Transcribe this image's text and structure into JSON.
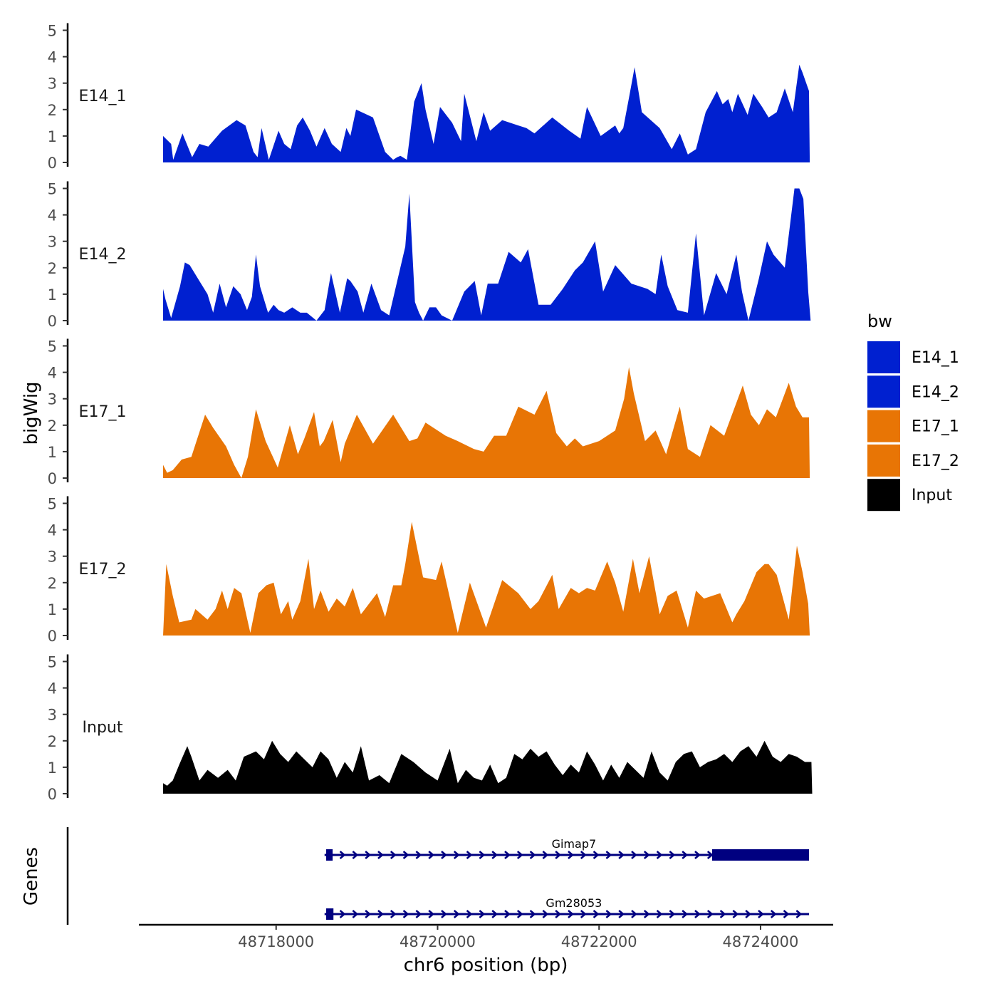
{
  "chart_data": {
    "type": "area",
    "ylabel": "bigWig",
    "xlabel": "chr6 position (bp)",
    "genes_label": "Genes",
    "xlim": [
      48716300,
      48724900
    ],
    "ylim": [
      0,
      5
    ],
    "y_ticks": [
      "0",
      "1",
      "2",
      "3",
      "4",
      "5"
    ],
    "x_ticks": [
      {
        "value": 48718000,
        "label": "48718000"
      },
      {
        "value": 48720000,
        "label": "48720000"
      },
      {
        "value": 48722000,
        "label": "48722000"
      },
      {
        "value": 48724000,
        "label": "48724000"
      }
    ],
    "legend": {
      "title": "bw",
      "entries": [
        {
          "label": "E14_1",
          "color": "#0020D0"
        },
        {
          "label": "E14_2",
          "color": "#0020D0"
        },
        {
          "label": "E17_1",
          "color": "#E87505"
        },
        {
          "label": "E17_2",
          "color": "#E87505"
        },
        {
          "label": "Input",
          "color": "#000000"
        }
      ]
    },
    "tracks": [
      {
        "name": "E14_1",
        "color": "#0020D0",
        "x": [
          48716600,
          48716700,
          48716725,
          48716840,
          48716960,
          48717050,
          48717160,
          48717330,
          48717510,
          48717620,
          48717720,
          48717770,
          48717820,
          48717910,
          48718030,
          48718100,
          48718180,
          48718260,
          48718330,
          48718420,
          48718500,
          48718600,
          48718690,
          48718800,
          48718870,
          48718920,
          48718990,
          48719200,
          48719350,
          48719450,
          48719500,
          48719540,
          48719620,
          48719710,
          48719800,
          48719850,
          48719950,
          48720030,
          48720180,
          48720290,
          48720330,
          48720480,
          48720570,
          48720650,
          48720800,
          48721000,
          48721100,
          48721200,
          48721420,
          48721630,
          48721770,
          48721850,
          48722020,
          48722200,
          48722250,
          48722300,
          48722380,
          48722440,
          48722530,
          48722750,
          48722900,
          48723000,
          48723100,
          48723200,
          48723320,
          48723460,
          48723530,
          48723600,
          48723650,
          48723720,
          48723840,
          48723910,
          48724020,
          48724100,
          48724200,
          48724300,
          48724400,
          48724480,
          48724520,
          48724600
        ],
        "y": [
          1.0,
          0.7,
          0.1,
          1.1,
          0.2,
          0.7,
          0.6,
          1.2,
          1.6,
          1.4,
          0.4,
          0.2,
          1.3,
          0.1,
          1.2,
          0.7,
          0.5,
          1.4,
          1.7,
          1.2,
          0.6,
          1.3,
          0.7,
          0.4,
          1.3,
          1.0,
          2.0,
          1.7,
          0.4,
          0.1,
          0.2,
          0.25,
          0.1,
          2.3,
          3.0,
          2.0,
          0.7,
          2.1,
          1.5,
          0.8,
          2.6,
          0.8,
          1.9,
          1.2,
          1.6,
          1.4,
          1.3,
          1.1,
          1.7,
          1.2,
          0.9,
          2.1,
          1.0,
          1.4,
          1.1,
          1.3,
          2.6,
          3.6,
          1.9,
          1.3,
          0.5,
          1.1,
          0.3,
          0.5,
          1.9,
          2.7,
          2.2,
          2.4,
          1.9,
          2.6,
          1.8,
          2.6,
          2.1,
          1.7,
          1.9,
          2.8,
          1.9,
          3.7,
          3.4,
          2.7
        ],
        "x_end": 48724610
      },
      {
        "name": "E14_2",
        "color": "#0020D0",
        "x": [
          48716600,
          48716630,
          48716700,
          48716810,
          48716870,
          48716930,
          48717050,
          48717150,
          48717220,
          48717300,
          48717380,
          48717470,
          48717560,
          48717640,
          48717700,
          48717750,
          48717800,
          48717900,
          48717970,
          48718030,
          48718100,
          48718200,
          48718300,
          48718380,
          48718500,
          48718600,
          48718680,
          48718790,
          48718880,
          48718920,
          48719010,
          48719080,
          48719180,
          48719300,
          48719400,
          48719600,
          48719650,
          48719720,
          48719770,
          48719820,
          48719900,
          48719980,
          48720050,
          48720180,
          48720330,
          48720460,
          48720540,
          48720620,
          48720750,
          48720880,
          48721030,
          48721120,
          48721250,
          48721400,
          48721550,
          48721700,
          48721800,
          48721950,
          48722050,
          48722200,
          48722400,
          48722600,
          48722700,
          48722770,
          48722850,
          48722970,
          48723100,
          48723200,
          48723300,
          48723450,
          48723580,
          48723700,
          48723770,
          48723850,
          48723980,
          48724080,
          48724160,
          48724300,
          48724420,
          48724480,
          48724530,
          48724590
        ],
        "y": [
          1.2,
          0.8,
          0.1,
          1.3,
          2.2,
          2.1,
          1.5,
          1.0,
          0.3,
          1.4,
          0.5,
          1.3,
          1.0,
          0.4,
          0.9,
          2.5,
          1.3,
          0.3,
          0.6,
          0.4,
          0.3,
          0.5,
          0.3,
          0.3,
          0.0,
          0.4,
          1.8,
          0.3,
          1.6,
          1.5,
          1.1,
          0.3,
          1.4,
          0.4,
          0.2,
          2.8,
          4.8,
          0.7,
          0.3,
          0.0,
          0.5,
          0.5,
          0.2,
          0.0,
          1.1,
          1.5,
          0.2,
          1.4,
          1.4,
          2.6,
          2.2,
          2.7,
          0.6,
          0.6,
          1.2,
          1.9,
          2.2,
          3.0,
          1.1,
          2.1,
          1.4,
          1.2,
          1.0,
          2.5,
          1.3,
          0.4,
          0.3,
          3.3,
          0.2,
          1.8,
          1.0,
          2.5,
          1.1,
          0.0,
          1.6,
          3.0,
          2.5,
          2.0,
          5.0,
          5.0,
          4.6,
          1.1
        ],
        "x_end": 48724620
      },
      {
        "name": "E17_1",
        "color": "#E87505",
        "x": [
          48716600,
          48716650,
          48716720,
          48716830,
          48716950,
          48717120,
          48717220,
          48717380,
          48717480,
          48717570,
          48717650,
          48717750,
          48717870,
          48718020,
          48718170,
          48718270,
          48718350,
          48718470,
          48718540,
          48718590,
          48718700,
          48718800,
          48718850,
          48719000,
          48719200,
          48719450,
          48719650,
          48719750,
          48719850,
          48720100,
          48720250,
          48720450,
          48720570,
          48720700,
          48720850,
          48721000,
          48721200,
          48721350,
          48721470,
          48721600,
          48721700,
          48721800,
          48722000,
          48722200,
          48722310,
          48722370,
          48722430,
          48722570,
          48722700,
          48722830,
          48723000,
          48723100,
          48723250,
          48723380,
          48723550,
          48723780,
          48723880,
          48723980,
          48724080,
          48724190,
          48724350,
          48724440,
          48724520,
          48724600
        ],
        "y": [
          0.5,
          0.2,
          0.3,
          0.7,
          0.8,
          2.4,
          1.9,
          1.2,
          0.5,
          0.0,
          0.8,
          2.6,
          1.4,
          0.4,
          2.0,
          0.9,
          1.5,
          2.5,
          1.2,
          1.4,
          2.2,
          0.6,
          1.3,
          2.4,
          1.3,
          2.4,
          1.4,
          1.5,
          2.1,
          1.6,
          1.4,
          1.1,
          1.0,
          1.6,
          1.6,
          2.7,
          2.4,
          3.3,
          1.7,
          1.2,
          1.5,
          1.2,
          1.4,
          1.8,
          3.0,
          4.2,
          3.2,
          1.4,
          1.8,
          0.9,
          2.7,
          1.1,
          0.8,
          2.0,
          1.6,
          3.5,
          2.4,
          2.0,
          2.6,
          2.3,
          3.6,
          2.7,
          2.3,
          2.3
        ],
        "x_end": 48724610
      },
      {
        "name": "E17_2",
        "color": "#E87505",
        "x": [
          48716600,
          48716640,
          48716720,
          48716800,
          48716950,
          48717000,
          48717150,
          48717250,
          48717330,
          48717400,
          48717480,
          48717570,
          48717680,
          48717780,
          48717880,
          48717970,
          48718060,
          48718150,
          48718200,
          48718300,
          48718400,
          48718470,
          48718550,
          48718650,
          48718750,
          48718850,
          48718950,
          48719050,
          48719150,
          48719250,
          48719350,
          48719450,
          48719550,
          48719600,
          48719680,
          48719820,
          48719980,
          48720050,
          48720250,
          48720400,
          48720600,
          48720800,
          48721000,
          48721150,
          48721250,
          48721420,
          48721500,
          48721650,
          48721750,
          48721850,
          48721950,
          48722100,
          48722200,
          48722300,
          48722420,
          48722500,
          48722620,
          48722750,
          48722850,
          48722960,
          48723100,
          48723200,
          48723300,
          48723500,
          48723650,
          48723700,
          48723800,
          48723950,
          48724050,
          48724100,
          48724200,
          48724350,
          48724450,
          48724520,
          48724590
        ],
        "y": [
          0.0,
          2.7,
          1.5,
          0.5,
          0.6,
          1.0,
          0.6,
          1.0,
          1.7,
          1.0,
          1.8,
          1.6,
          0.1,
          1.6,
          1.9,
          2.0,
          0.8,
          1.3,
          0.6,
          1.3,
          2.9,
          1.0,
          1.7,
          0.9,
          1.4,
          1.1,
          1.8,
          0.8,
          1.2,
          1.6,
          0.7,
          1.9,
          1.9,
          2.7,
          4.3,
          2.2,
          2.1,
          2.8,
          0.1,
          2.0,
          0.3,
          2.1,
          1.6,
          1.0,
          1.3,
          2.3,
          1.0,
          1.8,
          1.6,
          1.8,
          1.7,
          2.8,
          2.0,
          0.9,
          2.9,
          1.6,
          3.0,
          0.8,
          1.5,
          1.7,
          0.3,
          1.7,
          1.4,
          1.6,
          0.5,
          0.8,
          1.3,
          2.4,
          2.7,
          2.7,
          2.3,
          0.6,
          3.4,
          2.4,
          1.2
        ],
        "x_end": 48724610
      },
      {
        "name": "Input",
        "color": "#000000",
        "x": [
          48716600,
          48716650,
          48716720,
          48716800,
          48716900,
          48716950,
          48717050,
          48717150,
          48717280,
          48717400,
          48717500,
          48717600,
          48717750,
          48717850,
          48717950,
          48718050,
          48718150,
          48718250,
          48718350,
          48718450,
          48718550,
          48718650,
          48718750,
          48718850,
          48718950,
          48719050,
          48719150,
          48719280,
          48719400,
          48719550,
          48719700,
          48719850,
          48720000,
          48720150,
          48720250,
          48720350,
          48720450,
          48720550,
          48720650,
          48720750,
          48720850,
          48720950,
          48721050,
          48721150,
          48721250,
          48721350,
          48721450,
          48721550,
          48721650,
          48721750,
          48721850,
          48721950,
          48722050,
          48722150,
          48722250,
          48722350,
          48722450,
          48722550,
          48722650,
          48722750,
          48722850,
          48722950,
          48723050,
          48723150,
          48723250,
          48723350,
          48723450,
          48723550,
          48723650,
          48723750,
          48723850,
          48723950,
          48724050,
          48724150,
          48724250,
          48724350,
          48724450,
          48724550,
          48724630
        ],
        "y": [
          0.4,
          0.3,
          0.5,
          1.1,
          1.8,
          1.4,
          0.5,
          0.9,
          0.6,
          0.9,
          0.5,
          1.4,
          1.6,
          1.3,
          2.0,
          1.5,
          1.2,
          1.6,
          1.3,
          1.0,
          1.6,
          1.3,
          0.6,
          1.2,
          0.8,
          1.8,
          0.5,
          0.7,
          0.4,
          1.5,
          1.2,
          0.8,
          0.5,
          1.7,
          0.4,
          0.9,
          0.6,
          0.5,
          1.1,
          0.4,
          0.6,
          1.5,
          1.3,
          1.7,
          1.4,
          1.6,
          1.1,
          0.7,
          1.1,
          0.8,
          1.6,
          1.1,
          0.5,
          1.1,
          0.6,
          1.2,
          0.9,
          0.6,
          1.6,
          0.8,
          0.5,
          1.2,
          1.5,
          1.6,
          1.0,
          1.2,
          1.3,
          1.5,
          1.2,
          1.6,
          1.8,
          1.4,
          2.0,
          1.4,
          1.2,
          1.5,
          1.4,
          1.2,
          1.2
        ],
        "x_end": 48724640
      }
    ],
    "genes": [
      {
        "name": "Gimap7",
        "start": 48718600,
        "end": 48724600,
        "exons": [
          [
            48718620,
            48718700
          ],
          [
            48723400,
            48724600
          ]
        ]
      },
      {
        "name": "Gm28053",
        "start": 48718600,
        "end": 48724600,
        "exons": [
          [
            48718620,
            48718710
          ]
        ]
      }
    ]
  }
}
